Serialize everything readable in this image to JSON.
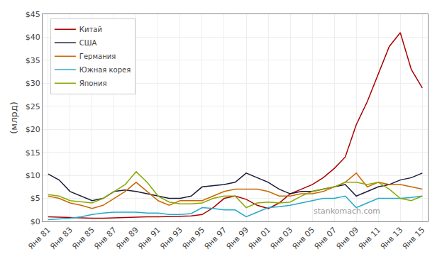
{
  "chart_data": {
    "type": "line",
    "ylabel": "(млрд)",
    "annotations": [
      "stankomach.com"
    ],
    "x": [
      1981,
      1982,
      1983,
      1984,
      1985,
      1986,
      1987,
      1988,
      1989,
      1990,
      1991,
      1992,
      1993,
      1994,
      1995,
      1996,
      1997,
      1998,
      1999,
      2000,
      2001,
      2002,
      2003,
      2004,
      2005,
      2006,
      2007,
      2008,
      2009,
      2010,
      2011,
      2012,
      2013,
      2014,
      2015
    ],
    "series": [
      {
        "name": "Китай",
        "color": "#aa0000",
        "values": [
          1.0,
          0.9,
          0.8,
          0.75,
          0.7,
          0.7,
          0.8,
          0.9,
          1.0,
          1.0,
          1.0,
          1.0,
          1.1,
          1.2,
          1.5,
          3.0,
          5.0,
          5.5,
          4.8,
          3.5,
          2.8,
          4.0,
          6.0,
          7.0,
          8.0,
          9.5,
          11.5,
          14.0,
          21.0,
          26.0,
          32.0,
          38.0,
          41.0,
          33.0,
          29.0
        ]
      },
      {
        "name": "США",
        "color": "#1a1a3a",
        "values": [
          10.3,
          9.0,
          6.5,
          5.5,
          4.5,
          5.0,
          6.5,
          6.8,
          6.5,
          6.0,
          5.5,
          5.0,
          5.0,
          5.5,
          7.5,
          7.8,
          8.0,
          8.5,
          10.5,
          9.5,
          8.5,
          7.0,
          6.0,
          6.5,
          6.5,
          7.0,
          7.5,
          8.0,
          5.5,
          6.5,
          7.5,
          8.0,
          9.0,
          9.5,
          10.5
        ]
      },
      {
        "name": "Германия",
        "color": "#cc6600",
        "values": [
          5.5,
          5.0,
          4.0,
          3.5,
          2.8,
          3.5,
          5.0,
          6.5,
          8.5,
          6.5,
          4.5,
          3.5,
          4.5,
          4.5,
          4.5,
          5.5,
          6.5,
          7.0,
          7.0,
          7.0,
          6.5,
          5.5,
          5.5,
          6.0,
          6.0,
          6.5,
          7.5,
          8.5,
          10.5,
          7.5,
          8.5,
          8.0,
          8.0,
          7.5,
          7.0
        ]
      },
      {
        "name": "Южная корея",
        "color": "#22aacc",
        "values": [
          0.4,
          0.5,
          0.7,
          1.0,
          1.5,
          1.8,
          2.0,
          2.0,
          2.0,
          1.8,
          1.8,
          1.5,
          1.5,
          1.7,
          3.0,
          2.8,
          2.5,
          2.5,
          1.0,
          2.0,
          3.0,
          3.2,
          3.5,
          4.0,
          4.5,
          5.0,
          5.0,
          5.5,
          3.0,
          4.0,
          5.0,
          5.0,
          5.0,
          5.2,
          5.5
        ]
      },
      {
        "name": "Япония",
        "color": "#88aa00",
        "values": [
          5.8,
          5.5,
          4.5,
          4.2,
          4.0,
          5.0,
          6.5,
          8.0,
          10.8,
          8.5,
          5.5,
          4.2,
          3.8,
          3.8,
          4.0,
          5.0,
          5.5,
          5.5,
          3.0,
          4.0,
          4.2,
          4.0,
          4.2,
          5.5,
          6.5,
          7.0,
          7.5,
          8.5,
          8.5,
          8.0,
          8.5,
          7.0,
          5.0,
          4.5,
          5.5
        ]
      }
    ],
    "xlim": [
      1980.5,
      2015.5
    ],
    "xticks": [
      {
        "value": 1981,
        "label": "Янв 81"
      },
      {
        "value": 1983,
        "label": "Янв 83"
      },
      {
        "value": 1985,
        "label": "Янв 85"
      },
      {
        "value": 1987,
        "label": "Янв 87"
      },
      {
        "value": 1989,
        "label": "Янв 89"
      },
      {
        "value": 1991,
        "label": "Янв 91"
      },
      {
        "value": 1993,
        "label": "Янв 93"
      },
      {
        "value": 1995,
        "label": "Янв 95"
      },
      {
        "value": 1997,
        "label": "Янв 97"
      },
      {
        "value": 1999,
        "label": "Янв 99"
      },
      {
        "value": 2001,
        "label": "Янв 01"
      },
      {
        "value": 2003,
        "label": "Янв 03"
      },
      {
        "value": 2005,
        "label": "Янв 05"
      },
      {
        "value": 2007,
        "label": "Янв 07"
      },
      {
        "value": 2009,
        "label": "Янв 09"
      },
      {
        "value": 2011,
        "label": "Янв 11"
      },
      {
        "value": 2013,
        "label": "Янв 13"
      },
      {
        "value": 2015,
        "label": "Янв 15"
      }
    ],
    "ylim": [
      0,
      45
    ],
    "yticks": [
      {
        "value": 0,
        "label": "$0"
      },
      {
        "value": 5,
        "label": "$5"
      },
      {
        "value": 10,
        "label": "$10"
      },
      {
        "value": 15,
        "label": "$15"
      },
      {
        "value": 20,
        "label": "$20"
      },
      {
        "value": 25,
        "label": "$25"
      },
      {
        "value": 30,
        "label": "$30"
      },
      {
        "value": 35,
        "label": "$35"
      },
      {
        "value": 40,
        "label": "$40"
      },
      {
        "value": 45,
        "label": "$45"
      }
    ],
    "grid": true,
    "legend": "upper left"
  }
}
